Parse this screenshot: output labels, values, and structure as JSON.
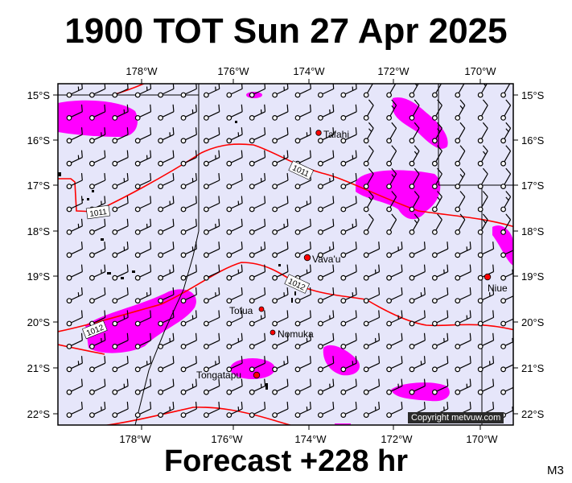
{
  "title": "1900 TOT Sun 27 Apr 2025",
  "forecast": "Forecast +228 hr",
  "model": "M3",
  "copyright": "Copyright metvuw.com",
  "colors": {
    "ocean": "#e6e6fa",
    "rain": "#ff00ff",
    "isobar": "#ff0000",
    "land": "#000000",
    "city": "#ff0000"
  },
  "axes": {
    "lon_labels": [
      "178°W",
      "176°W",
      "174°W",
      "172°W",
      "170°W"
    ],
    "lat_labels": [
      "15°S",
      "16°S",
      "17°S",
      "18°S",
      "19°S",
      "20°S",
      "21°S",
      "22°S"
    ]
  },
  "isobars": [
    {
      "label": "1011",
      "value": 1011
    },
    {
      "label": "1011",
      "value": 1011
    },
    {
      "label": "1012",
      "value": 1012
    },
    {
      "label": "1012",
      "value": 1012
    }
  ],
  "places": [
    {
      "name": "Tafahi",
      "icon": "city-dot"
    },
    {
      "name": "Vava'u",
      "icon": "city-dot"
    },
    {
      "name": "Niue",
      "icon": "city-dot"
    },
    {
      "name": "Tofua",
      "icon": "city-dot"
    },
    {
      "name": "Nomuka",
      "icon": "city-dot"
    },
    {
      "name": "Tongatapu",
      "icon": "city-dot"
    }
  ]
}
